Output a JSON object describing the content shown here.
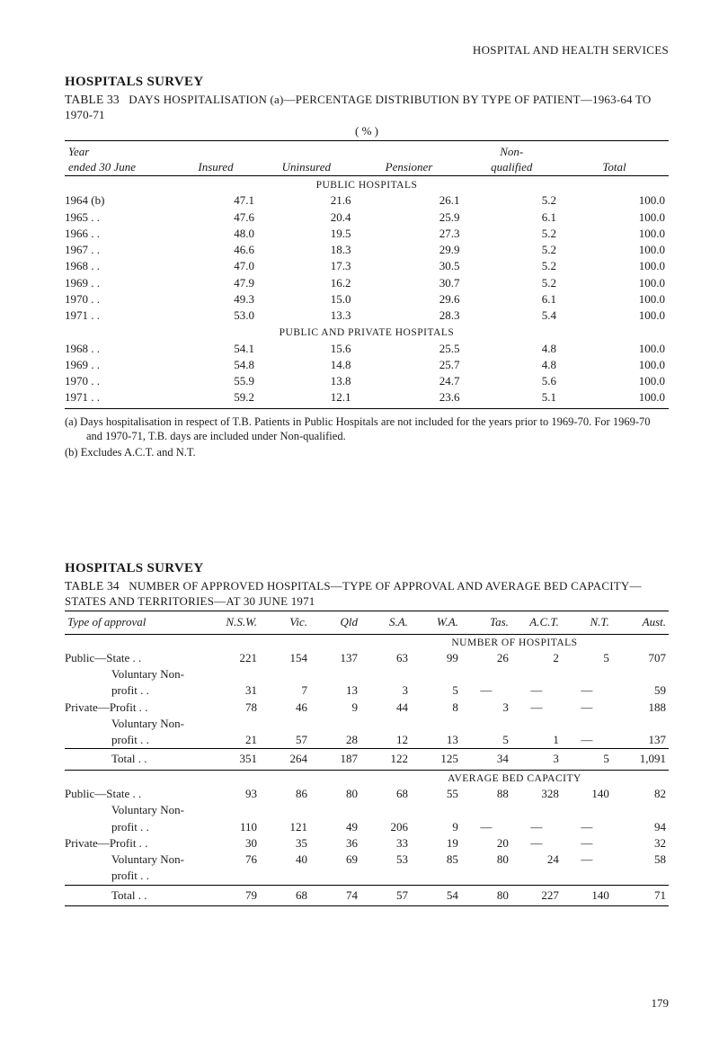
{
  "page_header": "HOSPITAL AND HEALTH SERVICES",
  "survey1_title": "HOSPITALS SURVEY",
  "table33": {
    "caption_prefix": "TABLE 33",
    "caption_rest": "DAYS HOSPITALISATION (a)—PERCENTAGE DISTRIBUTION BY TYPE OF PATIENT—1963-64 TO 1970-71",
    "unit_row": "( % )",
    "headers": {
      "year": "Year ended 30 June",
      "insured": "Insured",
      "uninsured": "Uninsured",
      "pensioner": "Pensioner",
      "nonqual": "Non- qualified",
      "total": "Total"
    },
    "section_public": "PUBLIC HOSPITALS",
    "section_private": "PUBLIC AND PRIVATE HOSPITALS",
    "public_rows": [
      {
        "y": "1964 (b)",
        "i": "47.1",
        "u": "21.6",
        "p": "26.1",
        "n": "5.2",
        "t": "100.0"
      },
      {
        "y": "1965  .     .",
        "i": "47.6",
        "u": "20.4",
        "p": "25.9",
        "n": "6.1",
        "t": "100.0"
      },
      {
        "y": "1966  .     .",
        "i": "48.0",
        "u": "19.5",
        "p": "27.3",
        "n": "5.2",
        "t": "100.0"
      },
      {
        "y": "1967  .     .",
        "i": "46.6",
        "u": "18.3",
        "p": "29.9",
        "n": "5.2",
        "t": "100.0"
      },
      {
        "y": "1968  .     .",
        "i": "47.0",
        "u": "17.3",
        "p": "30.5",
        "n": "5.2",
        "t": "100.0"
      },
      {
        "y": "1969  .     .",
        "i": "47.9",
        "u": "16.2",
        "p": "30.7",
        "n": "5.2",
        "t": "100.0"
      },
      {
        "y": "1970  .     .",
        "i": "49.3",
        "u": "15.0",
        "p": "29.6",
        "n": "6.1",
        "t": "100.0"
      },
      {
        "y": "1971  .     .",
        "i": "53.0",
        "u": "13.3",
        "p": "28.3",
        "n": "5.4",
        "t": "100.0"
      }
    ],
    "private_rows": [
      {
        "y": "1968  .     .",
        "i": "54.1",
        "u": "15.6",
        "p": "25.5",
        "n": "4.8",
        "t": "100.0"
      },
      {
        "y": "1969  .     .",
        "i": "54.8",
        "u": "14.8",
        "p": "25.7",
        "n": "4.8",
        "t": "100.0"
      },
      {
        "y": "1970  .     .",
        "i": "55.9",
        "u": "13.8",
        "p": "24.7",
        "n": "5.6",
        "t": "100.0"
      },
      {
        "y": "1971  .     .",
        "i": "59.2",
        "u": "12.1",
        "p": "23.6",
        "n": "5.1",
        "t": "100.0"
      }
    ],
    "note_a": "(a) Days hospitalisation in respect of T.B. Patients in Public Hospitals are not included for the years prior to 1969-70. For 1969-70 and 1970-71, T.B. days are included under Non-qualified.",
    "note_b": "(b) Excludes A.C.T. and N.T."
  },
  "survey2_title": "HOSPITALS SURVEY",
  "table34": {
    "caption_prefix": "TABLE 34",
    "caption_rest": "NUMBER OF APPROVED HOSPITALS—TYPE OF APPROVAL AND AVERAGE BED CAPACITY—STATES AND TERRITORIES—AT 30 JUNE 1971",
    "headers": {
      "type": "Type of approval",
      "nsw": "N.S.W.",
      "vic": "Vic.",
      "qld": "Qld",
      "sa": "S.A.",
      "wa": "W.A.",
      "tas": "Tas.",
      "act": "A.C.T.",
      "nt": "N.T.",
      "aust": "Aust."
    },
    "section_number": "NUMBER OF HOSPITALS",
    "section_avg": "AVERAGE BED CAPACITY",
    "rows_number": [
      {
        "l": "Public—State     .     .",
        "v": [
          "221",
          "154",
          "137",
          "63",
          "99",
          "26",
          "2",
          "5",
          "707"
        ]
      },
      {
        "l": "Voluntary Non-",
        "v": [
          "",
          "",
          "",
          "",
          "",
          "",
          "",
          "",
          ""
        ],
        "sub": true
      },
      {
        "l": "profit     .     .",
        "v": [
          "31",
          "7",
          "13",
          "3",
          "5",
          "—",
          "—",
          "—",
          "59"
        ],
        "sub": true
      },
      {
        "l": "Private—Profit    .     .",
        "v": [
          "78",
          "46",
          "9",
          "44",
          "8",
          "3",
          "—",
          "—",
          "188"
        ]
      },
      {
        "l": "Voluntary Non-",
        "v": [
          "",
          "",
          "",
          "",
          "",
          "",
          "",
          "",
          ""
        ],
        "sub": true
      },
      {
        "l": "profit     .     .",
        "v": [
          "21",
          "57",
          "28",
          "12",
          "13",
          "5",
          "1",
          "—",
          "137"
        ],
        "sub": true
      }
    ],
    "total_number": {
      "l": "Total   .     .",
      "v": [
        "351",
        "264",
        "187",
        "122",
        "125",
        "34",
        "3",
        "5",
        "1,091"
      ]
    },
    "rows_avg": [
      {
        "l": "Public—State     .     .",
        "v": [
          "93",
          "86",
          "80",
          "68",
          "55",
          "88",
          "328",
          "140",
          "82"
        ]
      },
      {
        "l": "Voluntary Non-",
        "v": [
          "",
          "",
          "",
          "",
          "",
          "",
          "",
          "",
          ""
        ],
        "sub": true
      },
      {
        "l": "profit     .     .",
        "v": [
          "110",
          "121",
          "49",
          "206",
          "9",
          "—",
          "—",
          "—",
          "94"
        ],
        "sub": true
      },
      {
        "l": "Private—Profit    .     .",
        "v": [
          "30",
          "35",
          "36",
          "33",
          "19",
          "20",
          "—",
          "—",
          "32"
        ]
      },
      {
        "l": "Voluntary Non-",
        "v": [
          "76",
          "40",
          "69",
          "53",
          "85",
          "80",
          "24",
          "—",
          "58"
        ],
        "sub": true
      },
      {
        "l": "profit     .     .",
        "v": [
          "",
          "",
          "",
          "",
          "",
          "",
          "",
          "",
          ""
        ],
        "sub": true
      }
    ],
    "total_avg": {
      "l": "Total   .     .",
      "v": [
        "79",
        "68",
        "74",
        "57",
        "54",
        "80",
        "227",
        "140",
        "71"
      ]
    }
  },
  "page_number": "179"
}
